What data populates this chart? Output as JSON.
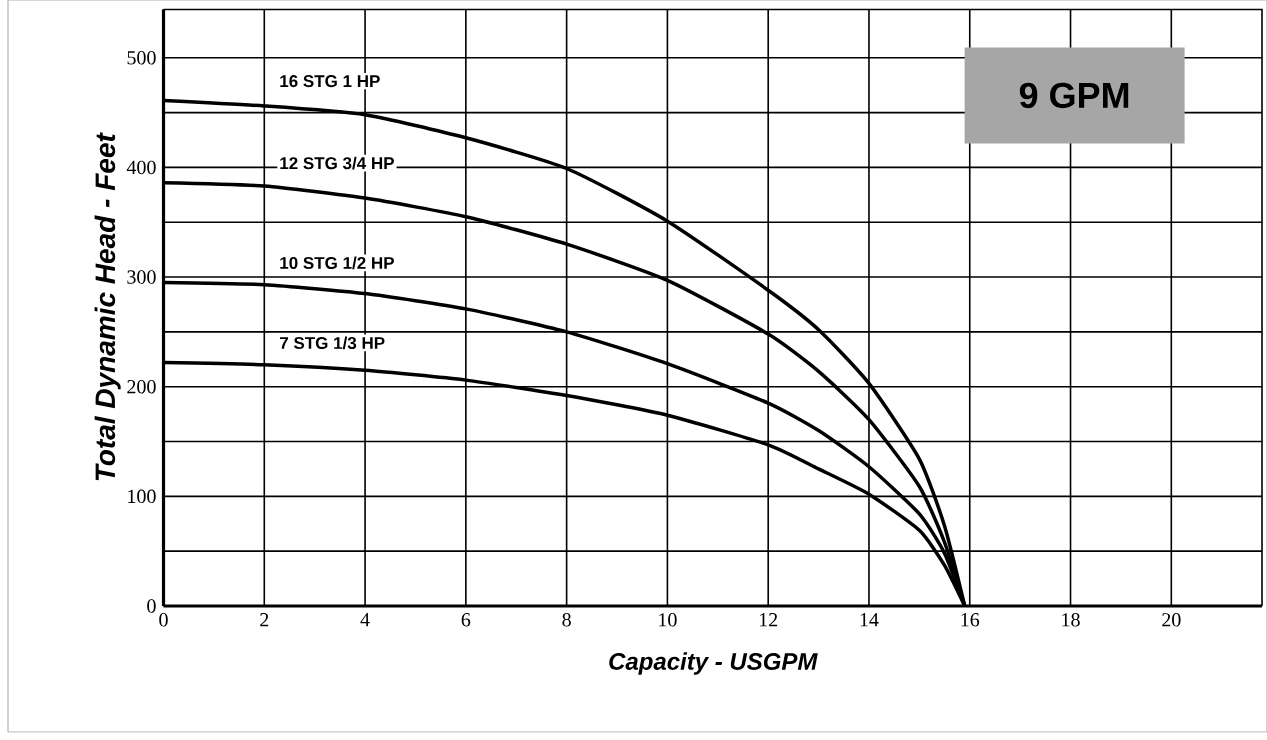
{
  "chart_data": {
    "type": "line",
    "xlabel": "Capacity - USGPM",
    "ylabel": "Total Dynamic Head - Feet",
    "annotations": [
      "9 GPM"
    ],
    "x": [
      0,
      2,
      4,
      6,
      8,
      10,
      12,
      13,
      14,
      15,
      15.5,
      15.9
    ],
    "series": [
      {
        "name": "16 STG 1 HP",
        "color": "#000000",
        "values": [
          461,
          456,
          448,
          427,
          399,
          351,
          288,
          252,
          203,
          134,
          73,
          0
        ]
      },
      {
        "name": "12 STG 3/4 HP",
        "color": "#000000",
        "values": [
          386,
          383,
          372,
          355,
          330,
          297,
          248,
          214,
          170,
          109,
          58,
          0
        ]
      },
      {
        "name": "10 STG 1/2 HP",
        "color": "#000000",
        "values": [
          295,
          293,
          285,
          271,
          250,
          221,
          185,
          160,
          127,
          84,
          48,
          0
        ]
      },
      {
        "name": "7 STG 1/3 HP",
        "color": "#000000",
        "values": [
          222,
          220,
          215,
          206,
          192,
          174,
          147,
          125,
          102,
          69,
          37,
          0
        ]
      }
    ],
    "xlim": [
      0,
      21.8
    ],
    "ylim": [
      0,
      544
    ],
    "xticks": [
      0,
      2,
      4,
      6,
      8,
      10,
      12,
      14,
      16,
      18,
      20
    ],
    "yticks": [
      0,
      {
        "value": 50,
        "label": null
      },
      100,
      {
        "value": 150,
        "label": null
      },
      200,
      {
        "value": 250,
        "label": null
      },
      300,
      {
        "value": 350,
        "label": null
      },
      400,
      {
        "value": 450,
        "label": null
      },
      500
    ],
    "grid": true,
    "marker": "none",
    "line_style": "solid"
  }
}
